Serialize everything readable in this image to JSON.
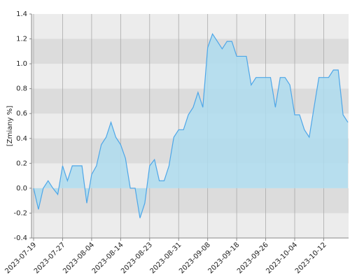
{
  "chart_data": {
    "type": "area",
    "y_label": "[Zmiany %]",
    "categories": [
      "2023-07-19",
      null,
      null,
      null,
      null,
      null,
      "2023-07-27",
      null,
      null,
      null,
      null,
      null,
      "2023-08-04",
      null,
      null,
      null,
      null,
      null,
      "2023-08-14",
      null,
      null,
      null,
      null,
      null,
      "2023-08-23",
      null,
      null,
      null,
      null,
      null,
      "2023-08-31",
      null,
      null,
      null,
      null,
      null,
      "2023-09-08",
      null,
      null,
      null,
      null,
      null,
      "2023-09-18",
      null,
      null,
      null,
      null,
      null,
      "2023-09-26",
      null,
      null,
      null,
      null,
      null,
      "2023-10-04",
      null,
      null,
      null,
      null,
      null,
      "2023-10-12",
      null,
      null,
      null,
      null,
      null
    ],
    "series": [
      {
        "color": "#4da6e8",
        "fill": "#aedcee",
        "values": [
          0.0,
          -0.17,
          0.0,
          0.06,
          0.0,
          -0.05,
          0.18,
          0.06,
          0.18,
          0.18,
          0.18,
          -0.12,
          0.11,
          0.18,
          0.35,
          0.41,
          0.53,
          0.41,
          0.35,
          0.24,
          0.0,
          0.0,
          -0.24,
          -0.12,
          0.18,
          0.23,
          0.06,
          0.06,
          0.18,
          0.41,
          0.47,
          0.47,
          0.59,
          0.65,
          0.77,
          0.65,
          1.13,
          1.24,
          1.18,
          1.12,
          1.18,
          1.18,
          1.06,
          1.06,
          1.06,
          0.83,
          0.89,
          0.89,
          0.89,
          0.89,
          0.65,
          0.89,
          0.89,
          0.83,
          0.59,
          0.59,
          0.47,
          0.41,
          0.65,
          0.89,
          0.89,
          0.89,
          0.95,
          0.95,
          0.59,
          0.53
        ]
      }
    ],
    "ylim": [
      -0.4,
      1.4
    ],
    "yticks": [
      -0.4,
      -0.2,
      {
        "value": 0,
        "label": "0.0"
      },
      0.2,
      0.4,
      0.6,
      0.8,
      {
        "value": 1,
        "label": "1.0"
      },
      1.2,
      1.4
    ],
    "grid": true
  }
}
